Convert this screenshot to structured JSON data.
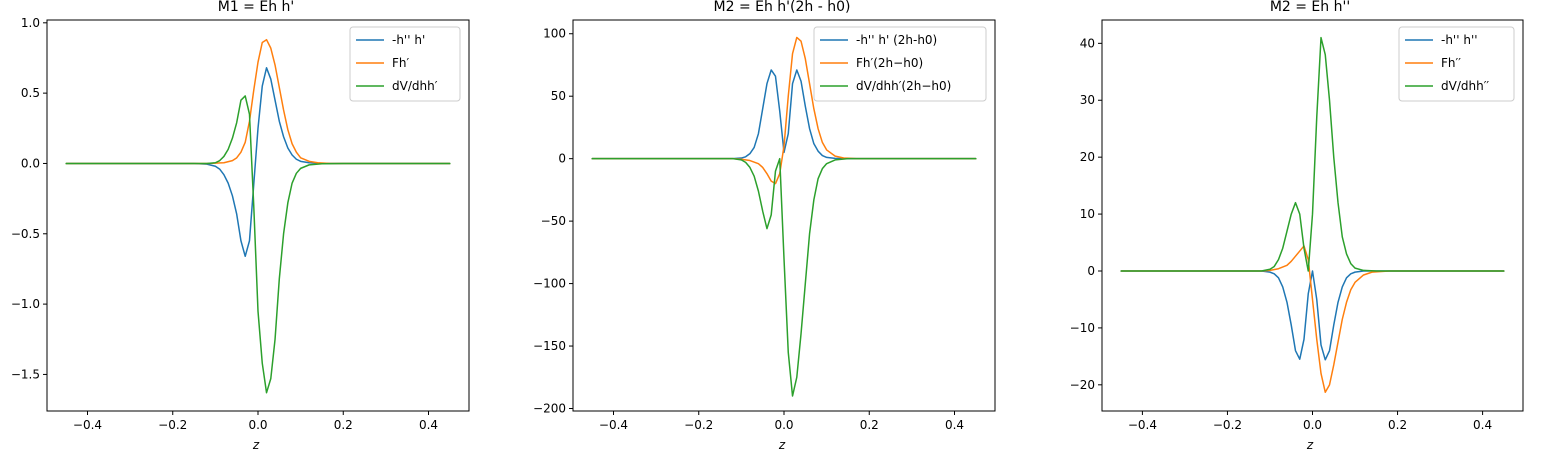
{
  "figure": {
    "colors": {
      "blue": "#1f77b4",
      "orange": "#ff7f0e",
      "green": "#2ca02c"
    }
  },
  "chart_data": [
    {
      "type": "line",
      "title": "M1 = Eh h'",
      "xlabel": "z",
      "ylabel": "",
      "xlim": [
        -0.495,
        0.495
      ],
      "ylim": [
        -1.76,
        1.02
      ],
      "xticks": [
        -0.4,
        -0.2,
        0.0,
        0.2,
        0.4
      ],
      "xtick_labels": [
        "−0.4",
        "−0.2",
        "0.0",
        "0.2",
        "0.4"
      ],
      "yticks": [
        -1.5,
        -1.0,
        -0.5,
        0.0,
        0.5,
        1.0
      ],
      "ytick_labels": [
        "−1.5",
        "−1.0",
        "−0.5",
        "0.0",
        "0.5",
        "1.0"
      ],
      "legend_position": "top-right",
      "series": [
        {
          "name": "-h'' h'",
          "color": "#1f77b4",
          "points": [
            [
              -0.45,
              0
            ],
            [
              -0.15,
              0
            ],
            [
              -0.12,
              -0.005
            ],
            [
              -0.1,
              -0.02
            ],
            [
              -0.09,
              -0.04
            ],
            [
              -0.08,
              -0.08
            ],
            [
              -0.07,
              -0.14
            ],
            [
              -0.06,
              -0.23
            ],
            [
              -0.05,
              -0.36
            ],
            [
              -0.04,
              -0.55
            ],
            [
              -0.03,
              -0.66
            ],
            [
              -0.02,
              -0.55
            ],
            [
              -0.01,
              -0.15
            ],
            [
              0,
              0.25
            ],
            [
              0.01,
              0.55
            ],
            [
              0.02,
              0.68
            ],
            [
              0.03,
              0.6
            ],
            [
              0.04,
              0.45
            ],
            [
              0.05,
              0.3
            ],
            [
              0.06,
              0.19
            ],
            [
              0.07,
              0.11
            ],
            [
              0.08,
              0.06
            ],
            [
              0.09,
              0.03
            ],
            [
              0.1,
              0.015
            ],
            [
              0.12,
              0.005
            ],
            [
              0.15,
              0
            ],
            [
              0.45,
              0
            ]
          ]
        },
        {
          "name": "Fh′",
          "color": "#ff7f0e",
          "points": [
            [
              -0.45,
              0
            ],
            [
              -0.12,
              0
            ],
            [
              -0.1,
              0.002
            ],
            [
              -0.08,
              0.005
            ],
            [
              -0.06,
              0.02
            ],
            [
              -0.05,
              0.04
            ],
            [
              -0.04,
              0.08
            ],
            [
              -0.03,
              0.15
            ],
            [
              -0.02,
              0.3
            ],
            [
              -0.01,
              0.52
            ],
            [
              0,
              0.72
            ],
            [
              0.01,
              0.86
            ],
            [
              0.02,
              0.88
            ],
            [
              0.03,
              0.82
            ],
            [
              0.04,
              0.7
            ],
            [
              0.05,
              0.54
            ],
            [
              0.06,
              0.38
            ],
            [
              0.07,
              0.24
            ],
            [
              0.08,
              0.14
            ],
            [
              0.09,
              0.08
            ],
            [
              0.1,
              0.04
            ],
            [
              0.12,
              0.015
            ],
            [
              0.14,
              0.005
            ],
            [
              0.17,
              0
            ],
            [
              0.45,
              0
            ]
          ]
        },
        {
          "name": "dV/dhh′",
          "color": "#2ca02c",
          "points": [
            [
              -0.45,
              0
            ],
            [
              -0.12,
              0
            ],
            [
              -0.1,
              0.005
            ],
            [
              -0.09,
              0.02
            ],
            [
              -0.08,
              0.05
            ],
            [
              -0.07,
              0.1
            ],
            [
              -0.06,
              0.18
            ],
            [
              -0.05,
              0.29
            ],
            [
              -0.04,
              0.45
            ],
            [
              -0.03,
              0.48
            ],
            [
              -0.02,
              0.35
            ],
            [
              -0.01,
              -0.3
            ],
            [
              0,
              -1.05
            ],
            [
              0.01,
              -1.42
            ],
            [
              0.02,
              -1.63
            ],
            [
              0.03,
              -1.53
            ],
            [
              0.04,
              -1.25
            ],
            [
              0.05,
              -0.82
            ],
            [
              0.06,
              -0.5
            ],
            [
              0.07,
              -0.28
            ],
            [
              0.08,
              -0.14
            ],
            [
              0.09,
              -0.07
            ],
            [
              0.1,
              -0.035
            ],
            [
              0.12,
              -0.01
            ],
            [
              0.15,
              -0.002
            ],
            [
              0.2,
              0
            ],
            [
              0.45,
              0
            ]
          ]
        }
      ]
    },
    {
      "type": "line",
      "title": "M2 = Eh h'(2h - h0)",
      "xlabel": "z",
      "ylabel": "",
      "xlim": [
        -0.495,
        0.495
      ],
      "ylim": [
        -202,
        111
      ],
      "xticks": [
        -0.4,
        -0.2,
        0.0,
        0.2,
        0.4
      ],
      "xtick_labels": [
        "−0.4",
        "−0.2",
        "0.0",
        "0.2",
        "0.4"
      ],
      "yticks": [
        -200,
        -150,
        -100,
        -50,
        0,
        50,
        100
      ],
      "ytick_labels": [
        "−200",
        "−150",
        "−100",
        "−50",
        "0",
        "50",
        "100"
      ],
      "legend_position": "top-right",
      "series": [
        {
          "name": "-h'' h' (2h-h0)",
          "color": "#1f77b4",
          "points": [
            [
              -0.45,
              0
            ],
            [
              -0.12,
              0
            ],
            [
              -0.1,
              0.5
            ],
            [
              -0.09,
              1.5
            ],
            [
              -0.08,
              4
            ],
            [
              -0.07,
              9
            ],
            [
              -0.06,
              20
            ],
            [
              -0.05,
              40
            ],
            [
              -0.04,
              60
            ],
            [
              -0.03,
              71
            ],
            [
              -0.02,
              66
            ],
            [
              -0.01,
              38
            ],
            [
              0,
              5
            ],
            [
              0.01,
              20
            ],
            [
              0.02,
              60
            ],
            [
              0.03,
              71
            ],
            [
              0.04,
              62
            ],
            [
              0.05,
              42
            ],
            [
              0.06,
              24
            ],
            [
              0.07,
              12
            ],
            [
              0.08,
              6
            ],
            [
              0.09,
              2.5
            ],
            [
              0.1,
              1
            ],
            [
              0.12,
              0.2
            ],
            [
              0.15,
              0
            ],
            [
              0.45,
              0
            ]
          ]
        },
        {
          "name": "Fh′(2h−h0)",
          "color": "#ff7f0e",
          "points": [
            [
              -0.45,
              0
            ],
            [
              -0.12,
              0
            ],
            [
              -0.1,
              -0.5
            ],
            [
              -0.08,
              -1.5
            ],
            [
              -0.06,
              -4
            ],
            [
              -0.05,
              -7
            ],
            [
              -0.04,
              -12
            ],
            [
              -0.03,
              -18
            ],
            [
              -0.02,
              -20
            ],
            [
              -0.01,
              -12
            ],
            [
              0,
              10
            ],
            [
              0.01,
              50
            ],
            [
              0.02,
              84
            ],
            [
              0.03,
              97
            ],
            [
              0.04,
              94
            ],
            [
              0.05,
              80
            ],
            [
              0.06,
              60
            ],
            [
              0.07,
              40
            ],
            [
              0.08,
              24
            ],
            [
              0.09,
              13
            ],
            [
              0.1,
              7
            ],
            [
              0.12,
              2
            ],
            [
              0.14,
              0.5
            ],
            [
              0.17,
              0
            ],
            [
              0.45,
              0
            ]
          ]
        },
        {
          "name": "dV/dhh′(2h−h0)",
          "color": "#2ca02c",
          "points": [
            [
              -0.45,
              0
            ],
            [
              -0.12,
              0
            ],
            [
              -0.1,
              -1
            ],
            [
              -0.09,
              -3
            ],
            [
              -0.08,
              -7
            ],
            [
              -0.07,
              -14
            ],
            [
              -0.06,
              -26
            ],
            [
              -0.05,
              -42
            ],
            [
              -0.04,
              -56
            ],
            [
              -0.03,
              -45
            ],
            [
              -0.02,
              -10
            ],
            [
              -0.01,
              0
            ],
            [
              0,
              -80
            ],
            [
              0.01,
              -155
            ],
            [
              0.02,
              -190
            ],
            [
              0.03,
              -175
            ],
            [
              0.04,
              -140
            ],
            [
              0.05,
              -100
            ],
            [
              0.06,
              -60
            ],
            [
              0.07,
              -33
            ],
            [
              0.08,
              -16
            ],
            [
              0.09,
              -8
            ],
            [
              0.1,
              -4
            ],
            [
              0.12,
              -1
            ],
            [
              0.15,
              0
            ],
            [
              0.45,
              0
            ]
          ]
        }
      ]
    },
    {
      "type": "line",
      "title": "M2 = Eh h''",
      "xlabel": "z",
      "ylabel": "",
      "xlim": [
        -0.495,
        0.495
      ],
      "ylim": [
        -24.6,
        44.1
      ],
      "xticks": [
        -0.4,
        -0.2,
        0.0,
        0.2,
        0.4
      ],
      "xtick_labels": [
        "−0.4",
        "−0.2",
        "0.0",
        "0.2",
        "0.4"
      ],
      "yticks": [
        -20,
        -10,
        0,
        10,
        20,
        30,
        40
      ],
      "ytick_labels": [
        "−20",
        "−10",
        "0",
        "10",
        "20",
        "30",
        "40"
      ],
      "legend_position": "top-right",
      "series": [
        {
          "name": "-h'' h''",
          "color": "#1f77b4",
          "points": [
            [
              -0.45,
              0
            ],
            [
              -0.12,
              0
            ],
            [
              -0.1,
              -0.2
            ],
            [
              -0.09,
              -0.5
            ],
            [
              -0.08,
              -1.2
            ],
            [
              -0.07,
              -2.8
            ],
            [
              -0.06,
              -5.5
            ],
            [
              -0.05,
              -9.5
            ],
            [
              -0.04,
              -14
            ],
            [
              -0.03,
              -15.5
            ],
            [
              -0.02,
              -12
            ],
            [
              -0.01,
              -4
            ],
            [
              0,
              0
            ],
            [
              0.01,
              -5
            ],
            [
              0.02,
              -13
            ],
            [
              0.03,
              -15.6
            ],
            [
              0.04,
              -14
            ],
            [
              0.05,
              -9.5
            ],
            [
              0.06,
              -5.5
            ],
            [
              0.07,
              -2.8
            ],
            [
              0.08,
              -1.2
            ],
            [
              0.09,
              -0.5
            ],
            [
              0.1,
              -0.2
            ],
            [
              0.12,
              0
            ],
            [
              0.45,
              0
            ]
          ]
        },
        {
          "name": "Fh′′",
          "color": "#ff7f0e",
          "points": [
            [
              -0.45,
              0
            ],
            [
              -0.12,
              0
            ],
            [
              -0.1,
              0.1
            ],
            [
              -0.08,
              0.4
            ],
            [
              -0.06,
              1
            ],
            [
              -0.05,
              1.7
            ],
            [
              -0.04,
              2.6
            ],
            [
              -0.03,
              3.5
            ],
            [
              -0.02,
              4.4
            ],
            [
              -0.01,
              2
            ],
            [
              0,
              -5
            ],
            [
              0.01,
              -12
            ],
            [
              0.02,
              -18
            ],
            [
              0.03,
              -21.3
            ],
            [
              0.04,
              -20
            ],
            [
              0.05,
              -16.5
            ],
            [
              0.06,
              -12.5
            ],
            [
              0.07,
              -8.5
            ],
            [
              0.08,
              -5.5
            ],
            [
              0.09,
              -3.3
            ],
            [
              0.1,
              -2
            ],
            [
              0.12,
              -0.7
            ],
            [
              0.14,
              -0.2
            ],
            [
              0.18,
              0
            ],
            [
              0.45,
              0
            ]
          ]
        },
        {
          "name": "dV/dhh′′",
          "color": "#2ca02c",
          "points": [
            [
              -0.45,
              0
            ],
            [
              -0.12,
              0
            ],
            [
              -0.1,
              0.3
            ],
            [
              -0.09,
              0.8
            ],
            [
              -0.08,
              2
            ],
            [
              -0.07,
              4
            ],
            [
              -0.06,
              7
            ],
            [
              -0.05,
              10
            ],
            [
              -0.04,
              12
            ],
            [
              -0.03,
              10
            ],
            [
              -0.02,
              4
            ],
            [
              -0.01,
              0
            ],
            [
              0,
              10
            ],
            [
              0.01,
              27
            ],
            [
              0.02,
              41
            ],
            [
              0.03,
              38
            ],
            [
              0.04,
              30
            ],
            [
              0.05,
              20
            ],
            [
              0.06,
              12
            ],
            [
              0.07,
              6
            ],
            [
              0.08,
              3
            ],
            [
              0.09,
              1.3
            ],
            [
              0.1,
              0.5
            ],
            [
              0.12,
              0.1
            ],
            [
              0.15,
              0
            ],
            [
              0.45,
              0
            ]
          ]
        }
      ]
    }
  ]
}
